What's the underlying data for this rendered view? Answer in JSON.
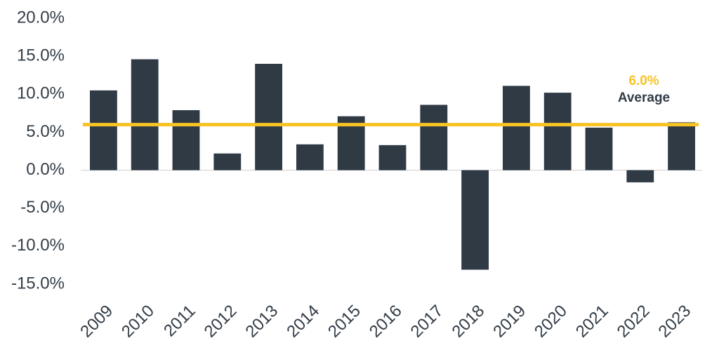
{
  "chart_data": {
    "type": "bar",
    "categories": [
      "2009",
      "2010",
      "2011",
      "2012",
      "2013",
      "2014",
      "2015",
      "2016",
      "2017",
      "2018",
      "2019",
      "2020",
      "2021",
      "2022",
      "2023"
    ],
    "values": [
      10.5,
      14.6,
      7.9,
      2.2,
      14.0,
      3.4,
      7.1,
      3.3,
      8.6,
      -13.1,
      11.1,
      10.2,
      5.6,
      -1.6,
      6.3
    ],
    "color": "#2f3a45",
    "ylim": [
      -15,
      20
    ],
    "yticks": [
      {
        "value": 20,
        "label": "20.0%"
      },
      {
        "value": 15,
        "label": "15.0%"
      },
      {
        "value": 10,
        "label": "10.0%"
      },
      {
        "value": 5,
        "label": "5.0%"
      },
      {
        "value": 0,
        "label": "0.0%"
      },
      {
        "value": -5,
        "label": "-5.0%"
      },
      {
        "value": -10,
        "label": "-10.0%"
      },
      {
        "value": -15,
        "label": "-15.0%"
      }
    ],
    "grid": false,
    "average": {
      "value": 6.0,
      "value_label": "6.0%",
      "label": "Average",
      "color": "#f7c325"
    }
  }
}
